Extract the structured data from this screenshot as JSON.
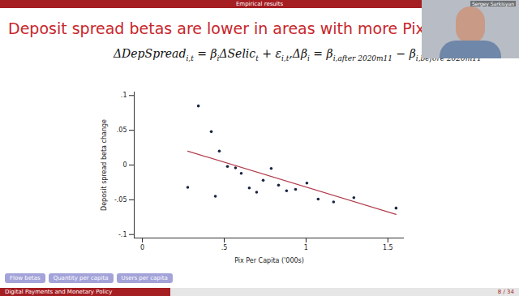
{
  "slide": {
    "section": "Empirical results",
    "title": "Deposit spread betas are lower in areas with more Pix usage",
    "equations": [
      [
        {
          "text": "ΔDepSpread"
        },
        {
          "text": "i,t",
          "sub": true
        },
        {
          "text": " = β"
        },
        {
          "text": "i",
          "sub": true
        },
        {
          "text": "ΔSelic"
        },
        {
          "text": "t",
          "sub": true
        },
        {
          "text": " + ε"
        },
        {
          "text": "i,t",
          "sub": true
        },
        {
          "text": ","
        }
      ],
      [
        {
          "text": "Δβ"
        },
        {
          "text": "i",
          "sub": true
        },
        {
          "text": " = β"
        },
        {
          "text": "i,after 2020m11",
          "sub": true
        },
        {
          "text": " − β"
        },
        {
          "text": "i,before 2020m11",
          "sub": true
        }
      ]
    ],
    "speaker": "Sergey Sarkisyan",
    "buttons": [
      "Flow betas",
      "Quantity per capita",
      "Users per capita"
    ],
    "footer_title": "Digital Payments and Monetary Policy",
    "page": "8 / 34"
  },
  "chart_data": {
    "type": "scatter",
    "x_label": "Pix Per Capita ('000s)",
    "y_label": "Deposit spread beta change",
    "grid": false,
    "xlim": [
      -0.05,
      1.6
    ],
    "xticks": [
      0,
      {
        "value": 0.5,
        "label": ".5"
      },
      1,
      {
        "value": 1.5,
        "label": "1.5"
      }
    ],
    "ylim": [
      -0.105,
      0.105
    ],
    "yticks": [
      {
        "value": -0.1,
        "label": "-.1"
      },
      {
        "value": -0.05,
        "label": "-.05"
      },
      0,
      {
        "value": 0.05,
        "label": ".05"
      },
      {
        "value": 0.1,
        "label": ".1"
      }
    ],
    "series": [
      {
        "type": "scatter",
        "color": "#1a2540",
        "marker": "circle",
        "x": [
          0.277,
          0.342,
          0.421,
          0.446,
          0.47,
          0.52,
          0.569,
          0.604,
          0.653,
          0.698,
          0.738,
          0.787,
          0.832,
          0.881,
          0.936,
          1.005,
          1.074,
          1.168,
          1.292,
          1.55
        ],
        "values": [
          -0.032,
          0.085,
          0.048,
          -0.045,
          0.02,
          -0.002,
          -0.004,
          -0.012,
          -0.033,
          -0.039,
          -0.022,
          -0.005,
          -0.029,
          -0.037,
          -0.035,
          -0.026,
          -0.049,
          -0.053,
          -0.047,
          -0.062
        ]
      },
      {
        "type": "line",
        "color": "#b03a4a",
        "line_style": "solid",
        "x": [
          0.277,
          1.55
        ],
        "values": [
          0.02,
          -0.071
        ]
      }
    ]
  }
}
